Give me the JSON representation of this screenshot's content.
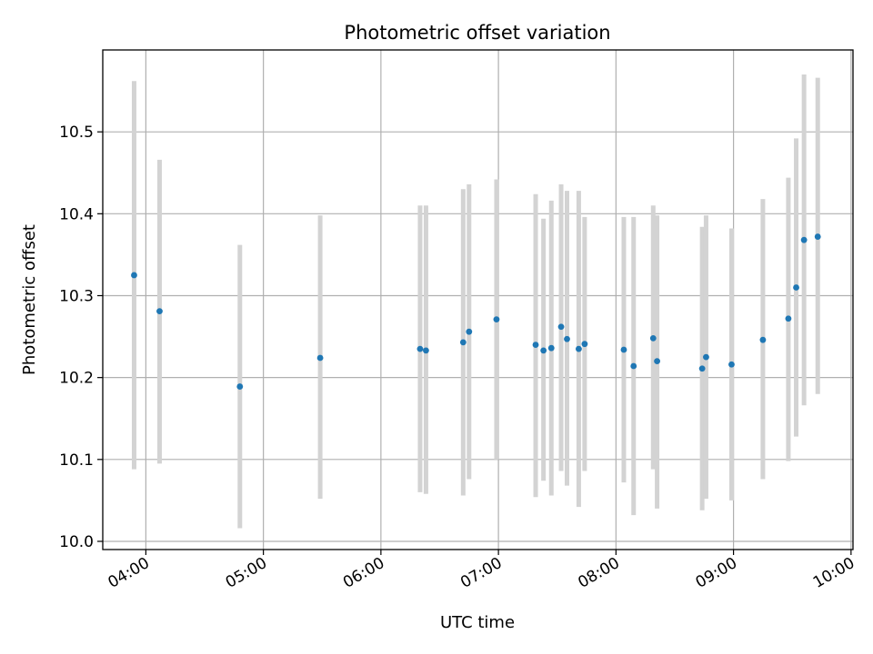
{
  "chart_data": {
    "type": "scatter",
    "title": "Photometric offset variation",
    "xlabel": "UTC time",
    "ylabel": "Photometric offset",
    "x_ticks": [
      "04:00",
      "05:00",
      "06:00",
      "07:00",
      "08:00",
      "09:00",
      "10:00"
    ],
    "y_ticks": [
      "10.0",
      "10.1",
      "10.2",
      "10.3",
      "10.4",
      "10.5"
    ],
    "xlim": [
      "03:38",
      "10:01"
    ],
    "ylim": [
      9.99,
      10.6
    ],
    "grid": true,
    "colors": {
      "point": "#1f77b4",
      "errorbar": "#d3d3d3",
      "grid": "#b0b0b0"
    },
    "series": [
      {
        "points": [
          {
            "x": "03:54",
            "y": 10.325,
            "y_low": 10.088,
            "y_high": 10.562
          },
          {
            "x": "04:07",
            "y": 10.281,
            "y_low": 10.095,
            "y_high": 10.466
          },
          {
            "x": "04:48",
            "y": 10.189,
            "y_low": 10.016,
            "y_high": 10.362
          },
          {
            "x": "05:29",
            "y": 10.224,
            "y_low": 10.052,
            "y_high": 10.398
          },
          {
            "x": "06:20",
            "y": 10.235,
            "y_low": 10.06,
            "y_high": 10.41
          },
          {
            "x": "06:23",
            "y": 10.233,
            "y_low": 10.058,
            "y_high": 10.41
          },
          {
            "x": "06:42",
            "y": 10.243,
            "y_low": 10.056,
            "y_high": 10.43
          },
          {
            "x": "06:45",
            "y": 10.256,
            "y_low": 10.076,
            "y_high": 10.436
          },
          {
            "x": "06:59",
            "y": 10.271,
            "y_low": 10.1,
            "y_high": 10.442
          },
          {
            "x": "07:19",
            "y": 10.24,
            "y_low": 10.054,
            "y_high": 10.424
          },
          {
            "x": "07:23",
            "y": 10.233,
            "y_low": 10.074,
            "y_high": 10.394
          },
          {
            "x": "07:27",
            "y": 10.236,
            "y_low": 10.056,
            "y_high": 10.416
          },
          {
            "x": "07:32",
            "y": 10.262,
            "y_low": 10.086,
            "y_high": 10.436
          },
          {
            "x": "07:35",
            "y": 10.247,
            "y_low": 10.068,
            "y_high": 10.428
          },
          {
            "x": "07:41",
            "y": 10.235,
            "y_low": 10.042,
            "y_high": 10.428
          },
          {
            "x": "07:44",
            "y": 10.241,
            "y_low": 10.086,
            "y_high": 10.396
          },
          {
            "x": "08:04",
            "y": 10.234,
            "y_low": 10.072,
            "y_high": 10.396
          },
          {
            "x": "08:09",
            "y": 10.214,
            "y_low": 10.032,
            "y_high": 10.396
          },
          {
            "x": "08:19",
            "y": 10.248,
            "y_low": 10.088,
            "y_high": 10.41
          },
          {
            "x": "08:21",
            "y": 10.22,
            "y_low": 10.04,
            "y_high": 10.398
          },
          {
            "x": "08:44",
            "y": 10.211,
            "y_low": 10.038,
            "y_high": 10.384
          },
          {
            "x": "08:46",
            "y": 10.225,
            "y_low": 10.052,
            "y_high": 10.398
          },
          {
            "x": "08:59",
            "y": 10.216,
            "y_low": 10.05,
            "y_high": 10.382
          },
          {
            "x": "09:15",
            "y": 10.246,
            "y_low": 10.076,
            "y_high": 10.418
          },
          {
            "x": "09:28",
            "y": 10.272,
            "y_low": 10.098,
            "y_high": 10.444
          },
          {
            "x": "09:32",
            "y": 10.31,
            "y_low": 10.128,
            "y_high": 10.492
          },
          {
            "x": "09:36",
            "y": 10.368,
            "y_low": 10.166,
            "y_high": 10.57
          },
          {
            "x": "09:43",
            "y": 10.372,
            "y_low": 10.18,
            "y_high": 10.566
          }
        ]
      }
    ]
  }
}
